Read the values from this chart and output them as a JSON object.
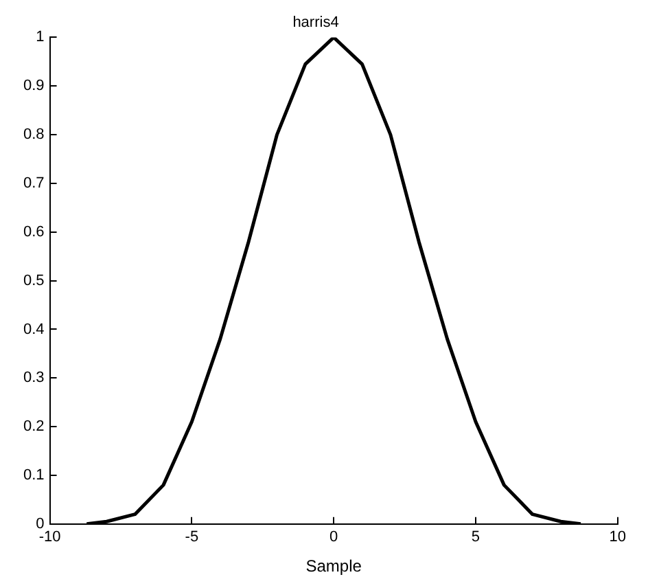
{
  "chart_data": {
    "type": "line",
    "title": "harris4",
    "xlabel": "Sample",
    "x": [
      -8.7,
      -8,
      -7,
      -6,
      -5,
      -4,
      -3,
      -2,
      -1,
      0,
      1,
      2,
      3,
      4,
      5,
      6,
      7,
      8,
      8.7
    ],
    "series": [
      {
        "color": "#000000",
        "values": [
          0,
          0.005,
          0.02,
          0.08,
          0.21,
          0.38,
          0.58,
          0.8,
          0.945,
          1,
          0.945,
          0.8,
          0.58,
          0.38,
          0.21,
          0.08,
          0.02,
          0.005,
          0
        ]
      }
    ],
    "xlim": [
      -10,
      10
    ],
    "xticks": [
      -10,
      -5,
      0,
      5,
      10
    ],
    "ylim": [
      0,
      1
    ],
    "yticks": [
      0,
      0.1,
      0.2,
      0.3,
      0.4,
      0.5,
      0.6,
      0.7,
      0.8,
      0.9,
      1
    ],
    "grid": false,
    "legend": false,
    "marker": "none",
    "line_style": "solid"
  }
}
